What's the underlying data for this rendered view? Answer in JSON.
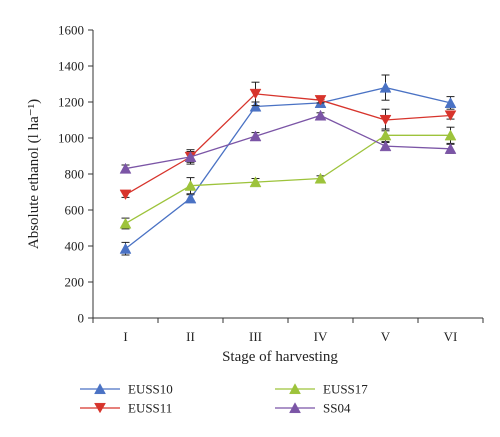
{
  "chart_data": {
    "type": "line",
    "xlabel": "Stage of harvesting",
    "ylabel": "Absolute ethanol (l ha⁻¹)",
    "categories": [
      "I",
      "II",
      "III",
      "IV",
      "V",
      "VI"
    ],
    "ylim": [
      0,
      1600
    ],
    "yticks": [
      0,
      200,
      400,
      600,
      800,
      1000,
      1200,
      1400,
      1600
    ],
    "grid": false,
    "legend_position": "bottom",
    "series": [
      {
        "name": "EUSS10",
        "color": "#4a72c4",
        "marker": "triangle-up",
        "values": [
          385,
          665,
          1175,
          1195,
          1280,
          1195
        ],
        "errors": [
          35,
          20,
          25,
          20,
          70,
          35
        ]
      },
      {
        "name": "EUSS11",
        "color": "#d7342c",
        "marker": "triangle-down",
        "values": [
          685,
          895,
          1245,
          1210,
          1100,
          1125
        ],
        "errors": [
          15,
          30,
          65,
          15,
          60,
          20
        ]
      },
      {
        "name": "EUSS17",
        "color": "#9dc33b",
        "marker": "triangle-up",
        "values": [
          525,
          735,
          755,
          775,
          1015,
          1015
        ],
        "errors": [
          30,
          45,
          20,
          15,
          35,
          45
        ]
      },
      {
        "name": "SS04",
        "color": "#7b55a6",
        "marker": "triangle-up",
        "values": [
          830,
          895,
          1010,
          1125,
          955,
          940
        ],
        "errors": [
          20,
          40,
          20,
          15,
          20,
          25
        ]
      }
    ]
  }
}
